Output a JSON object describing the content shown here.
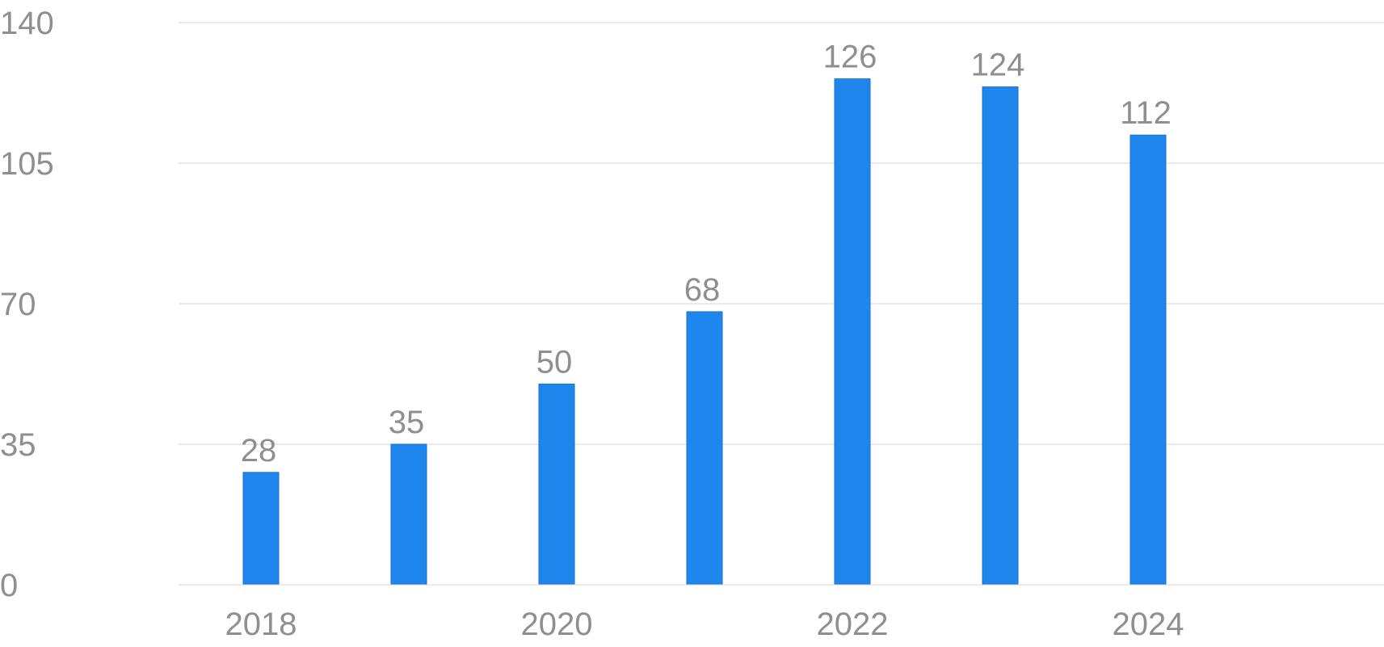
{
  "colors": {
    "bar": "#1f86ee",
    "bar_edge": "#1a73cf",
    "text": "#8f8f8f",
    "grid": "#e3e3e3",
    "background": "#ffffff"
  },
  "chart_data": {
    "type": "bar",
    "categories": [
      "2018",
      "2019",
      "2020",
      "2021",
      "2022",
      "2023",
      "2024"
    ],
    "x_tick_labels": [
      "2018",
      "2020",
      "2022",
      "2024"
    ],
    "values": [
      28,
      35,
      50,
      68,
      126,
      124,
      112
    ],
    "y_ticks": [
      0,
      35,
      70,
      105,
      140
    ],
    "ylim": [
      0,
      140
    ],
    "title": "",
    "xlabel": "",
    "ylabel": "",
    "grid": true,
    "data_labels": true,
    "legend": "none"
  }
}
